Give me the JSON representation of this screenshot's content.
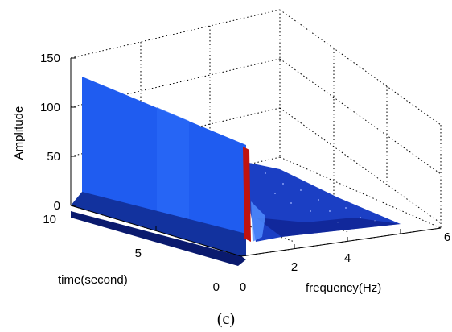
{
  "chart_data": {
    "type": "surface",
    "caption": "(c)",
    "axes": {
      "z": {
        "label": "Amplitude",
        "ticks": [
          "0",
          "50",
          "100",
          "150"
        ],
        "range": [
          0,
          150
        ]
      },
      "time": {
        "label": "time(second)",
        "ticks": [
          "0",
          "5",
          "10"
        ],
        "range": [
          0,
          10
        ]
      },
      "frequency": {
        "label": "frequency(Hz)",
        "ticks": [
          "0",
          "2",
          "4",
          "6"
        ],
        "range": [
          0,
          6
        ]
      }
    },
    "grid": true,
    "series": [
      {
        "values": [
          {
            "frequency": 0,
            "time": 10,
            "amplitude": 130
          },
          {
            "frequency": 0,
            "time": 0,
            "amplitude": 130
          },
          {
            "frequency": 0.1,
            "time": 5,
            "amplitude": 0
          },
          {
            "frequency": 2,
            "time": 0,
            "amplitude": 3
          },
          {
            "frequency": 4,
            "time": 0,
            "amplitude": 2
          },
          {
            "frequency": 5,
            "time": 0,
            "amplitude": 0
          }
        ]
      }
    ],
    "colors": {
      "surface_high": "#1f5cf0",
      "surface_mid": "#1b3fc4",
      "surface_low": "#0d1f8a",
      "peak": "#c0130f"
    }
  }
}
